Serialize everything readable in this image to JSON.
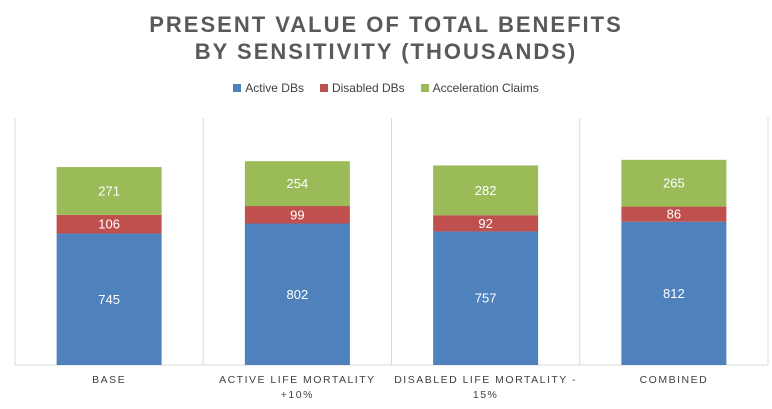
{
  "chart_data": {
    "type": "bar",
    "stacked": true,
    "title": [
      "PRESENT VALUE OF TOTAL BENEFITS",
      "BY SENSITIVITY (THOUSANDS)"
    ],
    "categories": [
      [
        "BASE"
      ],
      [
        "ACTIVE LIFE MORTALITY",
        "+10%"
      ],
      [
        "DISABLED LIFE MORTALITY -",
        "15%"
      ],
      [
        "COMBINED"
      ]
    ],
    "series": [
      {
        "name": "Active DBs",
        "color": "#4f81bd",
        "values": [
          745,
          802,
          757,
          812
        ]
      },
      {
        "name": "Disabled DBs",
        "color": "#c0504d",
        "values": [
          106,
          99,
          92,
          86
        ]
      },
      {
        "name": "Acceleration Claims",
        "color": "#9bbb59",
        "values": [
          271,
          254,
          282,
          265
        ]
      }
    ],
    "ylim": [
      0,
      1400
    ],
    "legend": "top",
    "grid": "vertical category separators",
    "data_labels": true
  }
}
